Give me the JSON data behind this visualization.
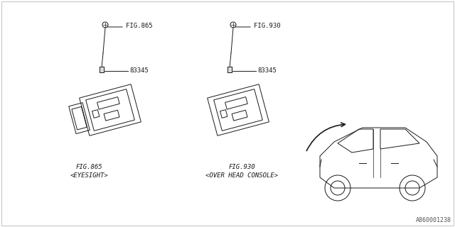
{
  "bg_color": "#ffffff",
  "line_color": "#000000",
  "fig_color": "#333333",
  "title_ref": "A860001238",
  "labels": {
    "fig865_top": "FIG.865",
    "fig930_top": "FIG.930",
    "part_number": "83345",
    "fig865_bottom": "FIG.865",
    "fig865_sub": "<EYESIGHT>",
    "fig930_bottom": "FIG.930",
    "fig930_sub": "<OVER HEAD CONSOLE>"
  },
  "diagram_color": "#1a1a1a",
  "light_gray": "#cccccc"
}
